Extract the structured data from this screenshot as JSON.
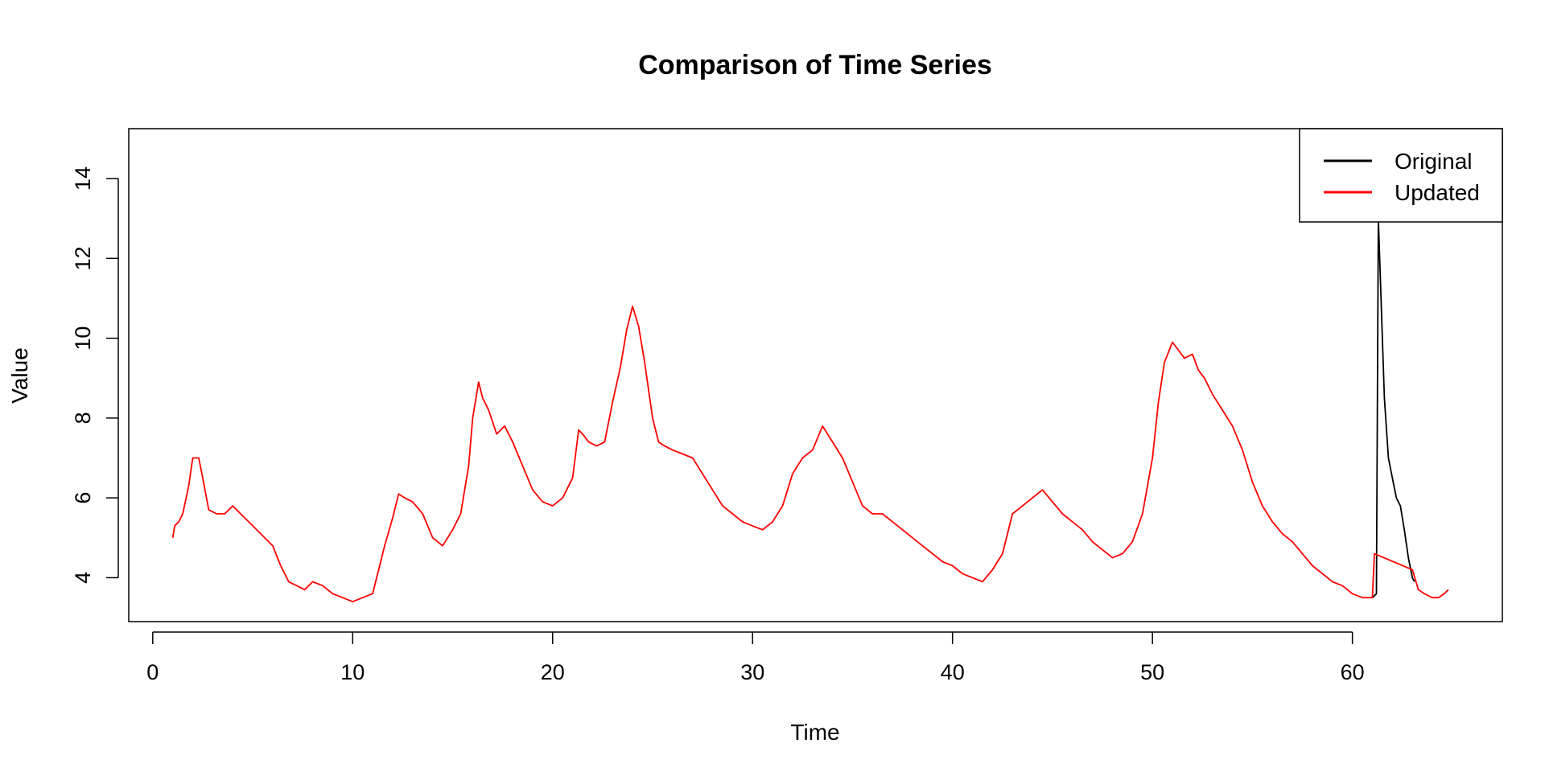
{
  "colors": {
    "original": "#000000",
    "updated": "#ff0000",
    "axis": "#000000",
    "background": "#ffffff"
  },
  "chart_data": {
    "type": "line",
    "title": "Comparison of Time Series",
    "xlabel": "Time",
    "ylabel": "Value",
    "xlim": [
      -1.2,
      67.5
    ],
    "ylim": [
      2.9,
      15.25
    ],
    "x_ticks": [
      0,
      10,
      20,
      30,
      40,
      50,
      60
    ],
    "y_ticks": [
      4,
      6,
      8,
      10,
      12,
      14
    ],
    "grid": false,
    "legend": {
      "position": "top-right",
      "entries": [
        {
          "label": "Original",
          "color": "#000000"
        },
        {
          "label": "Updated",
          "color": "#ff0000"
        }
      ]
    },
    "series": [
      {
        "name": "Original",
        "color": "#000000",
        "x": [
          61.0,
          61.2,
          61.3,
          61.4,
          61.5,
          61.6,
          61.8,
          62.0,
          62.2,
          62.4,
          62.6,
          62.8,
          63.0,
          63.1
        ],
        "y": [
          3.5,
          3.6,
          13.0,
          11.5,
          10.0,
          8.5,
          7.0,
          6.5,
          6.0,
          5.8,
          5.2,
          4.5,
          4.0,
          3.9
        ]
      },
      {
        "name": "Updated",
        "color": "#ff0000",
        "x": [
          1.0,
          1.1,
          1.3,
          1.5,
          1.8,
          2.0,
          2.3,
          2.5,
          2.8,
          3.2,
          3.6,
          4.0,
          4.4,
          4.8,
          5.2,
          5.6,
          6.0,
          6.4,
          6.8,
          7.2,
          7.6,
          8.0,
          8.5,
          9.0,
          9.5,
          10.0,
          10.5,
          11.0,
          11.3,
          11.6,
          12.0,
          12.3,
          12.6,
          13.0,
          13.5,
          14.0,
          14.5,
          15.0,
          15.4,
          15.8,
          16.0,
          16.3,
          16.5,
          16.8,
          17.2,
          17.6,
          18.0,
          18.5,
          19.0,
          19.5,
          20.0,
          20.5,
          21.0,
          21.3,
          21.5,
          21.8,
          22.2,
          22.6,
          23.0,
          23.4,
          23.7,
          24.0,
          24.3,
          24.6,
          25.0,
          25.3,
          25.6,
          26.0,
          26.5,
          27.0,
          27.5,
          28.0,
          28.5,
          29.0,
          29.5,
          30.0,
          30.5,
          31.0,
          31.5,
          32.0,
          32.5,
          33.0,
          33.5,
          34.0,
          34.5,
          35.0,
          35.5,
          36.0,
          36.5,
          37.0,
          37.5,
          38.0,
          38.5,
          39.0,
          39.5,
          40.0,
          40.5,
          41.0,
          41.5,
          42.0,
          42.5,
          43.0,
          43.5,
          44.0,
          44.5,
          45.0,
          45.5,
          46.0,
          46.5,
          47.0,
          47.5,
          48.0,
          48.5,
          49.0,
          49.5,
          50.0,
          50.3,
          50.6,
          51.0,
          51.3,
          51.6,
          52.0,
          52.3,
          52.6,
          53.0,
          53.5,
          54.0,
          54.5,
          55.0,
          55.5,
          56.0,
          56.5,
          57.0,
          57.5,
          58.0,
          58.5,
          59.0,
          59.5,
          60.0,
          60.5,
          61.0,
          61.1,
          63.0,
          63.3,
          63.6,
          64.0,
          64.3,
          64.6,
          64.8
        ],
        "y": [
          5.0,
          5.3,
          5.4,
          5.6,
          6.3,
          7.0,
          7.0,
          6.5,
          5.7,
          5.6,
          5.6,
          5.8,
          5.6,
          5.4,
          5.2,
          5.0,
          4.8,
          4.3,
          3.9,
          3.8,
          3.7,
          3.9,
          3.8,
          3.6,
          3.5,
          3.4,
          3.5,
          3.6,
          4.2,
          4.8,
          5.5,
          6.1,
          6.0,
          5.9,
          5.6,
          5.0,
          4.8,
          5.2,
          5.6,
          6.8,
          8.0,
          8.9,
          8.5,
          8.2,
          7.6,
          7.8,
          7.4,
          6.8,
          6.2,
          5.9,
          5.8,
          6.0,
          6.5,
          7.7,
          7.6,
          7.4,
          7.3,
          7.4,
          8.4,
          9.3,
          10.2,
          10.8,
          10.3,
          9.4,
          8.0,
          7.4,
          7.3,
          7.2,
          7.1,
          7.0,
          6.6,
          6.2,
          5.8,
          5.6,
          5.4,
          5.3,
          5.2,
          5.4,
          5.8,
          6.6,
          7.0,
          7.2,
          7.8,
          7.4,
          7.0,
          6.4,
          5.8,
          5.6,
          5.6,
          5.4,
          5.2,
          5.0,
          4.8,
          4.6,
          4.4,
          4.3,
          4.1,
          4.0,
          3.9,
          4.2,
          4.6,
          5.6,
          5.8,
          6.0,
          6.2,
          5.9,
          5.6,
          5.4,
          5.2,
          4.9,
          4.7,
          4.5,
          4.6,
          4.9,
          5.6,
          7.0,
          8.4,
          9.4,
          9.9,
          9.7,
          9.5,
          9.6,
          9.2,
          9.0,
          8.6,
          8.2,
          7.8,
          7.2,
          6.4,
          5.8,
          5.4,
          5.1,
          4.9,
          4.6,
          4.3,
          4.1,
          3.9,
          3.8,
          3.6,
          3.5,
          3.5,
          4.6,
          4.2,
          3.7,
          3.6,
          3.5,
          3.5,
          3.6,
          3.7
        ]
      }
    ]
  }
}
